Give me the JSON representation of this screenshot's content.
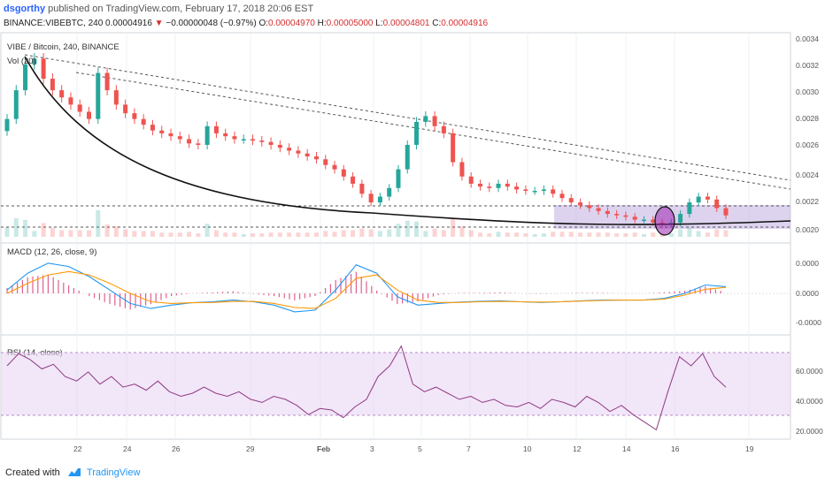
{
  "header": {
    "author": "dsgorthy",
    "published": " published on TradingView.com, February 17, 2018 20:06 EST",
    "ohlc": {
      "symbol": "BINANCE:VIBEBTC, 240",
      "last": "0.00004916",
      "change": "−0.00000048 (−0.97%)",
      "o_label": "O:",
      "o": "0.00004970",
      "h_label": "H:",
      "h": "0.00005000",
      "l_label": "L:",
      "l": "0.00004801",
      "c_label": "C:",
      "c": "0.00004916"
    }
  },
  "main_pane": {
    "title": "VIBE / Bitcoin, 240, BINANCE",
    "vol_label": "Vol (20)",
    "price_axis": [
      "0.0034",
      "0.0032",
      "0.0030",
      "0.0028",
      "0.0026",
      "0.0024",
      "0.0022",
      "0.0020"
    ]
  },
  "macd_pane": {
    "title": "MACD (12, 26, close, 9)",
    "axis": [
      "0.0000",
      "0.0000",
      "-0.0000"
    ]
  },
  "rsi_pane": {
    "title": "RSI (14, close)",
    "axis": [
      "60.0000",
      "40.0000",
      "20.0000"
    ]
  },
  "time_axis": [
    "22",
    "24",
    "26",
    "29",
    "Feb",
    "3",
    "5",
    "7",
    "10",
    "12",
    "14",
    "16",
    "19"
  ],
  "footer": {
    "created_with": "Created with",
    "brand": "TradingView"
  },
  "colors": {
    "up": "#26a69a",
    "down": "#ef5350",
    "macd": "#2196f3",
    "signal": "#ff9800",
    "rsi": "#8e3a80",
    "rsi_band": "#e9d5f5",
    "zone": "#b39ddb"
  },
  "chart_data": [
    {
      "type": "candlestick",
      "title": "VIBE / Bitcoin, 240, BINANCE",
      "ylim": [
        0.00195,
        0.0034
      ],
      "close_series": [
        0.0028,
        0.003,
        0.00318,
        0.00322,
        0.00308,
        0.003,
        0.00295,
        0.0029,
        0.00285,
        0.0028,
        0.00312,
        0.003,
        0.0029,
        0.00284,
        0.0028,
        0.00276,
        0.00272,
        0.0027,
        0.00268,
        0.00266,
        0.00263,
        0.00262,
        0.00275,
        0.0027,
        0.00268,
        0.00266,
        0.00266,
        0.00265,
        0.00264,
        0.00262,
        0.0026,
        0.00258,
        0.00256,
        0.00254,
        0.00252,
        0.00248,
        0.00245,
        0.0024,
        0.00235,
        0.00228,
        0.00222,
        0.00226,
        0.00232,
        0.00245,
        0.00262,
        0.00278,
        0.00282,
        0.00275,
        0.0027,
        0.0025,
        0.0024,
        0.00235,
        0.00233,
        0.00232,
        0.00235,
        0.00233,
        0.00231,
        0.0023,
        0.0023,
        0.00231,
        0.00228,
        0.00225,
        0.00222,
        0.0022,
        0.00218,
        0.00216,
        0.00214,
        0.00213,
        0.00212,
        0.0021,
        0.0021,
        0.00208,
        0.00207,
        0.00208,
        0.00214,
        0.00222,
        0.00226,
        0.00224,
        0.00218,
        0.00213
      ]
    },
    {
      "type": "line",
      "title": "MACD (12, 26, close, 9)",
      "series": [
        {
          "values": [
            0.1,
            0.6,
            0.9,
            0.8,
            0.5,
            0.1,
            -0.3,
            -0.45,
            -0.35,
            -0.28,
            -0.25,
            -0.2,
            -0.25,
            -0.35,
            -0.55,
            -0.5,
            0.1,
            0.85,
            0.6,
            -0.1,
            -0.35,
            -0.3,
            -0.26,
            -0.24,
            -0.22,
            -0.25,
            -0.27,
            -0.25,
            -0.22,
            -0.2,
            -0.2,
            -0.2,
            -0.15,
            0.0,
            0.25,
            0.2
          ]
        },
        {
          "values": [
            0.0,
            0.3,
            0.55,
            0.65,
            0.55,
            0.3,
            0.0,
            -0.25,
            -0.3,
            -0.28,
            -0.27,
            -0.24,
            -0.24,
            -0.3,
            -0.42,
            -0.45,
            -0.15,
            0.45,
            0.55,
            0.1,
            -0.2,
            -0.27,
            -0.27,
            -0.25,
            -0.24,
            -0.25,
            -0.26,
            -0.25,
            -0.23,
            -0.21,
            -0.2,
            -0.2,
            -0.17,
            -0.05,
            0.12,
            0.18
          ]
        }
      ]
    },
    {
      "type": "line",
      "title": "RSI (14, close)",
      "ylim": [
        15,
        80
      ],
      "series": [
        {
          "values": [
            62,
            70,
            66,
            60,
            63,
            55,
            52,
            58,
            50,
            55,
            48,
            50,
            46,
            52,
            45,
            42,
            44,
            48,
            44,
            42,
            45,
            40,
            38,
            42,
            40,
            36,
            30,
            34,
            33,
            28,
            35,
            40,
            55,
            62,
            75,
            50,
            45,
            48,
            44,
            40,
            42,
            38,
            40,
            36,
            35,
            38,
            34,
            40,
            38,
            35,
            42,
            38,
            32,
            36,
            30,
            25,
            20,
            45,
            68,
            62,
            70,
            55,
            48
          ]
        }
      ]
    }
  ]
}
